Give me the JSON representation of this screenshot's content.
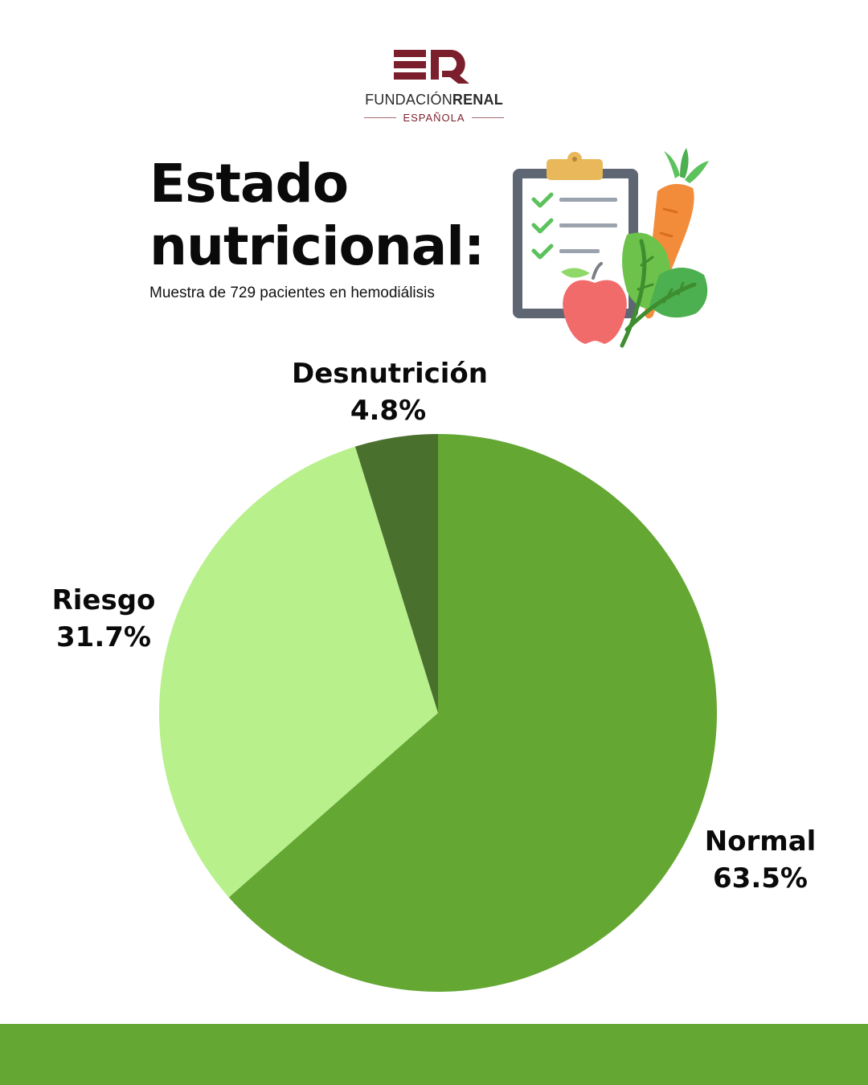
{
  "logo": {
    "name_light": "FUNDACIÓN",
    "name_bold": "RENAL",
    "sub": "ESPAÑOLA",
    "color": "#7a1f2b"
  },
  "title": "Estado nutricional:",
  "subtitle": "Muestra de 729 pacientes en hemodiálisis",
  "illustration": {
    "icons": [
      "clipboard-checklist-icon",
      "carrot-icon",
      "apple-icon",
      "leafy-greens-icon"
    ]
  },
  "chart_data": {
    "type": "pie",
    "start_angle_deg": 0,
    "direction": "clockwise",
    "slices": [
      {
        "label": "Normal",
        "value": 63.5,
        "value_label": "63.5%",
        "color": "#64a733"
      },
      {
        "label": "Riesgo",
        "value": 31.7,
        "value_label": "31.7%",
        "color": "#b8f08c"
      },
      {
        "label": "Desnutrición",
        "value": 4.8,
        "value_label": "4.8%",
        "color": "#4a702e"
      }
    ]
  },
  "colors": {
    "footer": "#64a733",
    "title": "#0a0a0a"
  }
}
